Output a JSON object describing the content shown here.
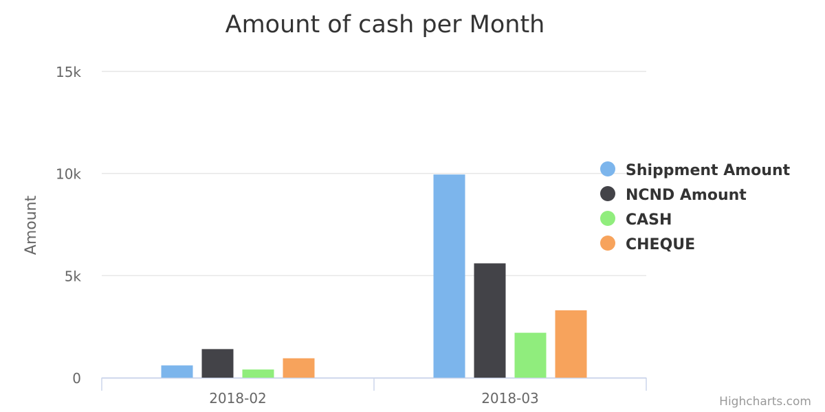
{
  "chart_data": {
    "type": "bar",
    "title": "Amount of cash per Month",
    "ylabel": "Amount",
    "xlabel": "",
    "categories": [
      "2018-02",
      "2018-03"
    ],
    "ylim": [
      0,
      15000
    ],
    "yticks": [
      {
        "value": 0,
        "label": "0"
      },
      {
        "value": 5000,
        "label": "5k"
      },
      {
        "value": 10000,
        "label": "10k"
      },
      {
        "value": 15000,
        "label": "15k"
      }
    ],
    "grid": true,
    "legend_position": "right",
    "series": [
      {
        "name": "Shippment Amount",
        "color": "#7cb5ec",
        "values": [
          600,
          9950
        ]
      },
      {
        "name": "NCND Amount",
        "color": "#434348",
        "values": [
          1400,
          5600
        ]
      },
      {
        "name": "CASH",
        "color": "#90ed7d",
        "values": [
          400,
          2200
        ]
      },
      {
        "name": "CHEQUE",
        "color": "#f7a35c",
        "values": [
          950,
          3300
        ]
      }
    ]
  },
  "credits": "Highcharts.com"
}
